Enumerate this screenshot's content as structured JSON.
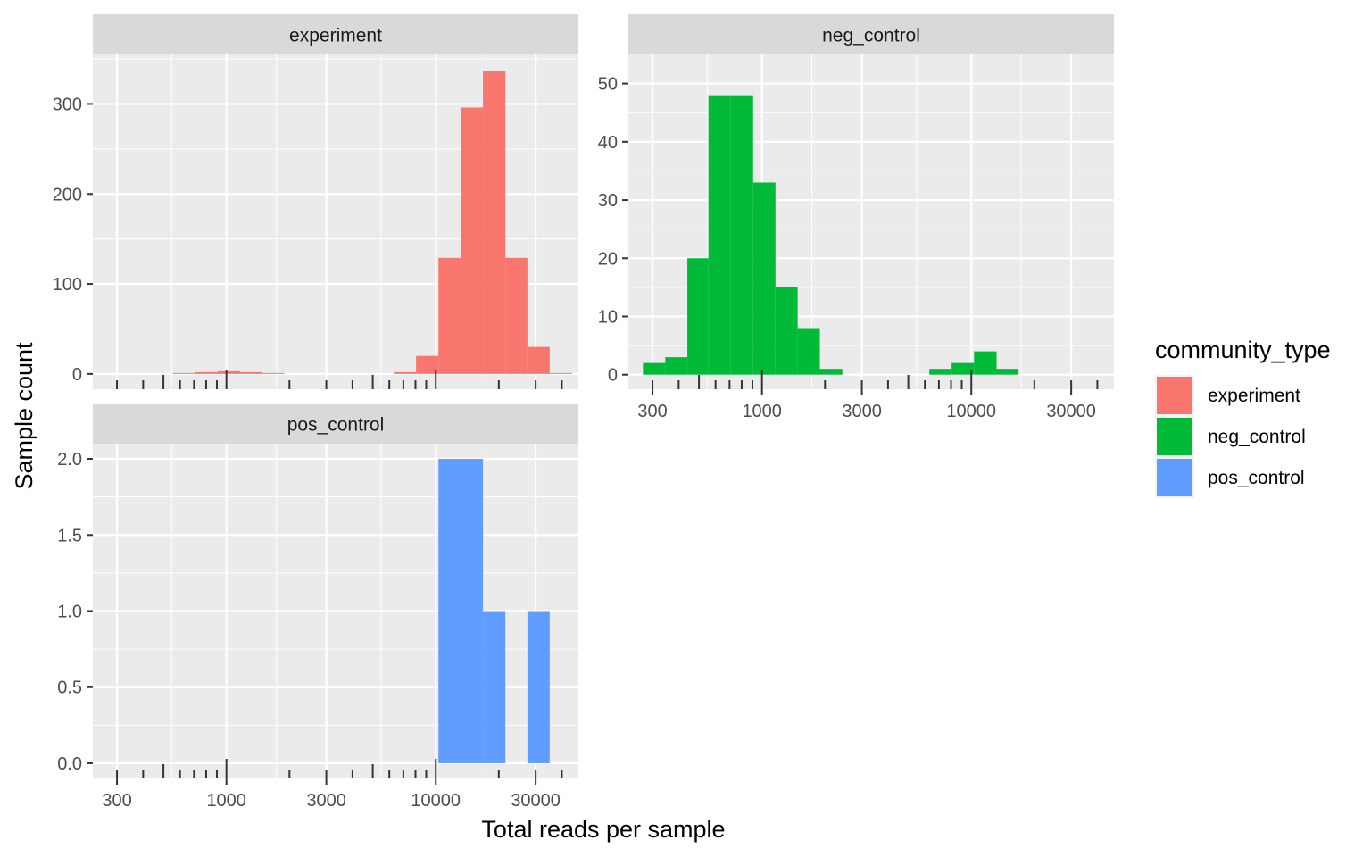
{
  "chart_data": {
    "type": "bar",
    "subtype": "faceted histogram",
    "xlabel": "Total reads per sample",
    "ylabel": "Sample count",
    "x_scale": "log10",
    "x_ticks": [
      300,
      1000,
      3000,
      10000,
      30000
    ],
    "x_tick_labels": [
      "300",
      "1000",
      "3000",
      "10000",
      "30000"
    ],
    "x_range": [
      230,
      48000
    ],
    "grid": true,
    "legend": {
      "title": "community_type",
      "position": "right",
      "entries": [
        {
          "label": "experiment",
          "color": "#F8766D"
        },
        {
          "label": "neg_control",
          "color": "#00BA38"
        },
        {
          "label": "pos_control",
          "color": "#619CFF"
        }
      ]
    },
    "facets": [
      {
        "title": "experiment",
        "color": "#F8766D",
        "y_ticks": [
          0,
          100,
          200,
          300
        ],
        "y_tick_labels": [
          "0",
          "100",
          "200",
          "300"
        ],
        "ylim": [
          -17,
          355
        ],
        "bins": [
          {
            "x0": 555,
            "x1": 710,
            "count": 1
          },
          {
            "x0": 710,
            "x1": 907,
            "count": 2
          },
          {
            "x0": 907,
            "x1": 1160,
            "count": 3
          },
          {
            "x0": 1160,
            "x1": 1480,
            "count": 2
          },
          {
            "x0": 1480,
            "x1": 1890,
            "count": 1
          },
          {
            "x0": 6300,
            "x1": 8050,
            "count": 2
          },
          {
            "x0": 8050,
            "x1": 10300,
            "count": 20
          },
          {
            "x0": 10300,
            "x1": 13200,
            "count": 129
          },
          {
            "x0": 13200,
            "x1": 16800,
            "count": 296
          },
          {
            "x0": 16800,
            "x1": 21500,
            "count": 337
          },
          {
            "x0": 21500,
            "x1": 27400,
            "count": 129
          },
          {
            "x0": 27400,
            "x1": 35000,
            "count": 30
          },
          {
            "x0": 35000,
            "x1": 44800,
            "count": 1
          }
        ]
      },
      {
        "title": "neg_control",
        "color": "#00BA38",
        "y_ticks": [
          0,
          10,
          20,
          30,
          40,
          50
        ],
        "y_tick_labels": [
          "0",
          "10",
          "20",
          "30",
          "40",
          "50"
        ],
        "ylim": [
          -2.5,
          55
        ],
        "bins": [
          {
            "x0": 270,
            "x1": 345,
            "count": 2
          },
          {
            "x0": 345,
            "x1": 440,
            "count": 3
          },
          {
            "x0": 440,
            "x1": 555,
            "count": 20
          },
          {
            "x0": 555,
            "x1": 710,
            "count": 48
          },
          {
            "x0": 710,
            "x1": 907,
            "count": 48
          },
          {
            "x0": 907,
            "x1": 1160,
            "count": 33
          },
          {
            "x0": 1160,
            "x1": 1480,
            "count": 15
          },
          {
            "x0": 1480,
            "x1": 1890,
            "count": 8
          },
          {
            "x0": 1890,
            "x1": 2420,
            "count": 1
          },
          {
            "x0": 6300,
            "x1": 8050,
            "count": 1
          },
          {
            "x0": 8050,
            "x1": 10300,
            "count": 2
          },
          {
            "x0": 10300,
            "x1": 13200,
            "count": 4
          },
          {
            "x0": 13200,
            "x1": 16800,
            "count": 1
          }
        ]
      },
      {
        "title": "pos_control",
        "color": "#619CFF",
        "y_ticks": [
          0,
          0.5,
          1,
          1.5,
          2
        ],
        "y_tick_labels": [
          "0.0",
          "0.5",
          "1.0",
          "1.5",
          "2.0"
        ],
        "ylim": [
          -0.1,
          2.1
        ],
        "bins": [
          {
            "x0": 10300,
            "x1": 13200,
            "count": 2
          },
          {
            "x0": 13200,
            "x1": 16800,
            "count": 2
          },
          {
            "x0": 16800,
            "x1": 21500,
            "count": 1
          },
          {
            "x0": 27400,
            "x1": 35000,
            "count": 1
          }
        ]
      }
    ],
    "rug_ticks": [
      300,
      400,
      500,
      600,
      700,
      800,
      900,
      1000,
      2000,
      3000,
      4000,
      5000,
      6000,
      7000,
      8000,
      9000,
      10000,
      20000,
      30000,
      40000,
      50000
    ]
  }
}
